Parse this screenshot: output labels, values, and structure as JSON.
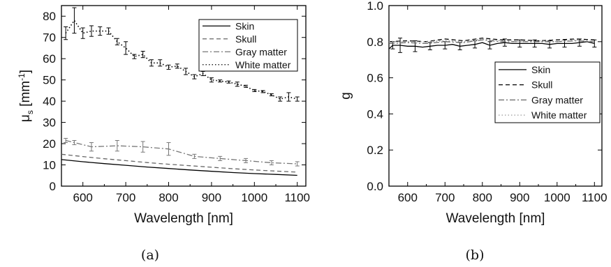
{
  "figure": {
    "caption_a": "(a)",
    "caption_b": "(b)"
  },
  "chart_data": [
    {
      "type": "line",
      "panel": "a",
      "xlabel": "Wavelength [nm]",
      "ylabel": "μs [mm-1]",
      "ylabel_parts": {
        "mu": "μ",
        "sub": "s",
        "unit_open": " [mm",
        "sup": "-1",
        "unit_close": "]"
      },
      "xlim": [
        550,
        1120
      ],
      "ylim": [
        0,
        85
      ],
      "xticks": [
        600,
        700,
        800,
        900,
        1000,
        1100
      ],
      "yticks": [
        0,
        10,
        20,
        30,
        40,
        50,
        60,
        70,
        80
      ],
      "legend_position": "top-right",
      "series": [
        {
          "name": "Skin",
          "style": "solid",
          "color": "#000000",
          "x": [
            550,
            600,
            650,
            700,
            750,
            800,
            850,
            900,
            950,
            1000,
            1050,
            1100
          ],
          "y": [
            12.5,
            11.5,
            10.6,
            9.8,
            9.0,
            8.3,
            7.6,
            7.0,
            6.4,
            5.9,
            5.5,
            5.1
          ]
        },
        {
          "name": "Skull",
          "style": "dashed",
          "color": "#666666",
          "x": [
            550,
            600,
            650,
            700,
            750,
            800,
            850,
            900,
            950,
            1000,
            1050,
            1100
          ],
          "y": [
            15.0,
            13.9,
            12.9,
            12.0,
            11.1,
            10.3,
            9.6,
            8.9,
            8.2,
            7.6,
            7.1,
            6.6
          ]
        },
        {
          "name": "Gray matter",
          "style": "dashdot",
          "color": "#777777",
          "x": [
            560,
            580,
            620,
            680,
            740,
            800,
            860,
            920,
            980,
            1040,
            1100
          ],
          "y": [
            21.5,
            20.5,
            18.5,
            19.0,
            18.5,
            17.5,
            14.0,
            13.0,
            12.0,
            11.0,
            10.5
          ],
          "err": [
            1.0,
            1.0,
            2.0,
            2.5,
            2.5,
            3.0,
            1.0,
            1.0,
            1.0,
            1.0,
            1.0
          ]
        },
        {
          "name": "White matter",
          "style": "dotted",
          "color": "#000000",
          "x": [
            560,
            580,
            600,
            620,
            640,
            660,
            680,
            700,
            720,
            740,
            760,
            780,
            800,
            820,
            840,
            860,
            880,
            900,
            920,
            940,
            960,
            980,
            1000,
            1020,
            1040,
            1060,
            1080,
            1100
          ],
          "y": [
            72,
            78,
            72,
            73,
            73,
            73,
            68,
            65,
            61,
            62,
            58,
            58,
            56,
            56.5,
            54,
            51.5,
            53,
            50,
            49.5,
            49,
            48,
            47,
            45,
            44.5,
            43,
            41,
            42,
            41
          ],
          "err": [
            3,
            6,
            2.5,
            2.5,
            2,
            1.5,
            1.5,
            3,
            1,
            1.5,
            1.5,
            1.5,
            1,
            1,
            1.5,
            1,
            1,
            1,
            0.5,
            0.5,
            1,
            0.5,
            0.5,
            0.5,
            0.5,
            1,
            2,
            1
          ]
        }
      ]
    },
    {
      "type": "line",
      "panel": "b",
      "xlabel": "Wavelength [nm]",
      "ylabel": "g",
      "xlim": [
        550,
        1120
      ],
      "ylim": [
        0.0,
        1.0
      ],
      "xticks": [
        600,
        700,
        800,
        900,
        1000,
        1100
      ],
      "yticks": [
        "0.0",
        "0.2",
        "0.4",
        "0.6",
        "0.8",
        "1.0"
      ],
      "legend_position": "center-right",
      "series": [
        {
          "name": "Skin",
          "style": "solid",
          "color": "#000000",
          "x": [
            550,
            560,
            580,
            600,
            620,
            640,
            660,
            680,
            700,
            720,
            740,
            760,
            780,
            800,
            820,
            840,
            860,
            880,
            900,
            920,
            940,
            960,
            980,
            1000,
            1020,
            1040,
            1060,
            1080,
            1100
          ],
          "y": [
            0.76,
            0.78,
            0.78,
            0.775,
            0.775,
            0.77,
            0.775,
            0.78,
            0.78,
            0.785,
            0.775,
            0.78,
            0.785,
            0.795,
            0.78,
            0.79,
            0.795,
            0.79,
            0.79,
            0.79,
            0.79,
            0.79,
            0.785,
            0.79,
            0.79,
            0.79,
            0.795,
            0.8,
            0.79
          ],
          "err": [
            0,
            0.02,
            0.04,
            0,
            0.03,
            0,
            0.02,
            0,
            0.02,
            0,
            0.02,
            0,
            0.02,
            0,
            0.02,
            0,
            0.02,
            0,
            0.02,
            0,
            0.02,
            0,
            0.02,
            0,
            0.02,
            0,
            0.02,
            0,
            0.02
          ]
        },
        {
          "name": "Skull",
          "style": "dashed",
          "color": "#000000",
          "x": [
            550,
            600,
            650,
            700,
            750,
            800,
            850,
            900,
            950,
            1000,
            1050,
            1100
          ],
          "y": [
            0.8,
            0.805,
            0.8,
            0.815,
            0.805,
            0.82,
            0.81,
            0.81,
            0.805,
            0.81,
            0.815,
            0.81
          ]
        },
        {
          "name": "Gray matter",
          "style": "dashdot",
          "color": "#666666",
          "x": [
            550,
            600,
            650,
            700,
            750,
            800,
            850,
            900,
            950,
            1000,
            1050,
            1100
          ],
          "y": [
            0.79,
            0.795,
            0.79,
            0.8,
            0.795,
            0.81,
            0.8,
            0.8,
            0.8,
            0.8,
            0.805,
            0.8
          ]
        },
        {
          "name": "White matter",
          "style": "dotted",
          "color": "#999999",
          "x": [
            550,
            600,
            650,
            700,
            750,
            800,
            850,
            900,
            950,
            1000,
            1050,
            1100
          ],
          "y": [
            0.8,
            0.8,
            0.8,
            0.805,
            0.8,
            0.815,
            0.805,
            0.8,
            0.805,
            0.8,
            0.81,
            0.8
          ]
        }
      ]
    }
  ]
}
